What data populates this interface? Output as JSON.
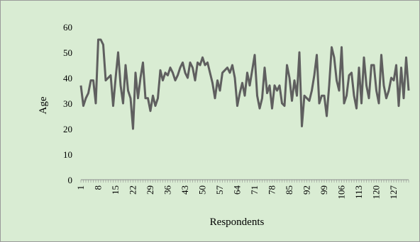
{
  "chart_data": {
    "type": "line",
    "title": "",
    "xlabel": "Respondents",
    "ylabel": "Age",
    "ylim": [
      0,
      60
    ],
    "y_ticks": [
      "0",
      "10",
      "20",
      "30",
      "40",
      "50",
      "60"
    ],
    "x_tick_labels": [
      "1",
      "8",
      "15",
      "22",
      "29",
      "36",
      "43",
      "50",
      "57",
      "64",
      "71",
      "78",
      "85",
      "92",
      "99",
      "106",
      "113",
      "120",
      "127"
    ],
    "grid": false,
    "legend": "none",
    "line_color": "#5f5f5f",
    "background_color": "#d9ecd3",
    "x": [
      1,
      2,
      3,
      4,
      5,
      6,
      7,
      8,
      9,
      10,
      11,
      12,
      13,
      14,
      15,
      16,
      17,
      18,
      19,
      20,
      21,
      22,
      23,
      24,
      25,
      26,
      27,
      28,
      29,
      30,
      31,
      32,
      33,
      34,
      35,
      36,
      37,
      38,
      39,
      40,
      41,
      42,
      43,
      44,
      45,
      46,
      47,
      48,
      49,
      50,
      51,
      52,
      53,
      54,
      55,
      56,
      57,
      58,
      59,
      60,
      61,
      62,
      63,
      64,
      65,
      66,
      67,
      68,
      69,
      70,
      71,
      72,
      73,
      74,
      75,
      76,
      77,
      78,
      79,
      80,
      81,
      82,
      83,
      84,
      85,
      86,
      87,
      88,
      89,
      90,
      91,
      92,
      93,
      94,
      95,
      96,
      97,
      98,
      99,
      100,
      101,
      102,
      103,
      104,
      105,
      106,
      107,
      108,
      109,
      110,
      111,
      112,
      113,
      114,
      115,
      116,
      117,
      118,
      119,
      120,
      121,
      122,
      123,
      124,
      125,
      126,
      127,
      128,
      129,
      130,
      131,
      132,
      133
    ],
    "series": [
      {
        "values": [
          37,
          29,
          32,
          34,
          39,
          39,
          30,
          55,
          55,
          53,
          39,
          40,
          41,
          29,
          40,
          50,
          37,
          30,
          45,
          35,
          32,
          20,
          42,
          32,
          40,
          46,
          32,
          32,
          27,
          33,
          29,
          32,
          43,
          39,
          42,
          41,
          44,
          42,
          39,
          41,
          44,
          46,
          42,
          40,
          46,
          44,
          39,
          46,
          45,
          48,
          45,
          46,
          42,
          38,
          32,
          39,
          35,
          42,
          43,
          44,
          42,
          45,
          40,
          29,
          34,
          38,
          33,
          42,
          37,
          43,
          49,
          33,
          28,
          32,
          44,
          34,
          37,
          28,
          37,
          35,
          37,
          30,
          29,
          45,
          40,
          31,
          39,
          33,
          50,
          21,
          33,
          32,
          31,
          35,
          41,
          49,
          30,
          33,
          33,
          25,
          37,
          52,
          48,
          39,
          35,
          52,
          30,
          33,
          41,
          42,
          33,
          28,
          44,
          30,
          48,
          37,
          32,
          45,
          45,
          35,
          30,
          49,
          37,
          32,
          35,
          40,
          39,
          45,
          29,
          44,
          32,
          48,
          35
        ]
      }
    ]
  }
}
